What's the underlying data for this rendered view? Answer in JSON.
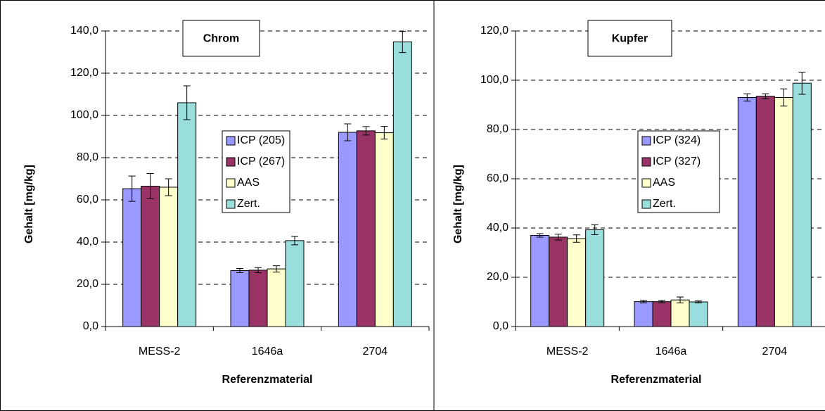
{
  "chart_data": [
    {
      "type": "bar",
      "title": "Chrom",
      "xlabel": "Referenzmaterial",
      "ylabel": "Gehalt [mg/kg]",
      "categories": [
        "MESS-2",
        "1646a",
        "2704"
      ],
      "series": [
        {
          "name": "ICP (205)",
          "color": "#9999ff",
          "values": [
            65.3,
            26.5,
            92.0
          ],
          "errors": [
            6.0,
            1.0,
            4.0
          ]
        },
        {
          "name": "ICP (267)",
          "color": "#993366",
          "values": [
            66.5,
            26.7,
            92.7
          ],
          "errors": [
            6.0,
            1.2,
            2.0
          ]
        },
        {
          "name": "AAS",
          "color": "#ffffcc",
          "values": [
            66.0,
            27.3,
            91.8
          ],
          "errors": [
            4.0,
            1.5,
            3.0
          ]
        },
        {
          "name": "Zert.",
          "color": "#99dddd",
          "values": [
            106.0,
            40.7,
            134.8
          ],
          "errors": [
            8.0,
            2.0,
            5.0
          ]
        }
      ],
      "ylim": [
        0,
        140
      ],
      "yticks": [
        {
          "value": 0,
          "label": "0,0"
        },
        {
          "value": 20,
          "label": "20,0"
        },
        {
          "value": 40,
          "label": "40,0"
        },
        {
          "value": 60,
          "label": "60,0"
        },
        {
          "value": 80,
          "label": "80,0"
        },
        {
          "value": 100,
          "label": "100,0"
        },
        {
          "value": 120,
          "label": "120,0"
        },
        {
          "value": 140,
          "label": "140,0"
        }
      ],
      "grid": true
    },
    {
      "type": "bar",
      "title": "Kupfer",
      "xlabel": "Referenzmaterial",
      "ylabel": "Gehalt [mg/kg]",
      "categories": [
        "MESS-2",
        "1646a",
        "2704"
      ],
      "series": [
        {
          "name": "ICP (324)",
          "color": "#9999ff",
          "values": [
            37.0,
            10.1,
            93.0
          ],
          "errors": [
            0.7,
            0.5,
            1.5
          ]
        },
        {
          "name": "ICP (327)",
          "color": "#993366",
          "values": [
            36.3,
            10.1,
            93.5
          ],
          "errors": [
            1.2,
            0.5,
            1.0
          ]
        },
        {
          "name": "AAS",
          "color": "#ffffcc",
          "values": [
            35.7,
            10.8,
            93.0
          ],
          "errors": [
            1.5,
            1.2,
            3.5
          ]
        },
        {
          "name": "Zert.",
          "color": "#99dddd",
          "values": [
            39.3,
            10.0,
            98.8
          ],
          "errors": [
            2.0,
            0.4,
            4.5
          ]
        }
      ],
      "ylim": [
        0,
        120
      ],
      "yticks": [
        {
          "value": 0,
          "label": "0,0"
        },
        {
          "value": 20,
          "label": "20,0"
        },
        {
          "value": 40,
          "label": "40,0"
        },
        {
          "value": 60,
          "label": "60,0"
        },
        {
          "value": 80,
          "label": "80,0"
        },
        {
          "value": 100,
          "label": "100,0"
        },
        {
          "value": 120,
          "label": "120,0"
        }
      ],
      "grid": true
    }
  ]
}
